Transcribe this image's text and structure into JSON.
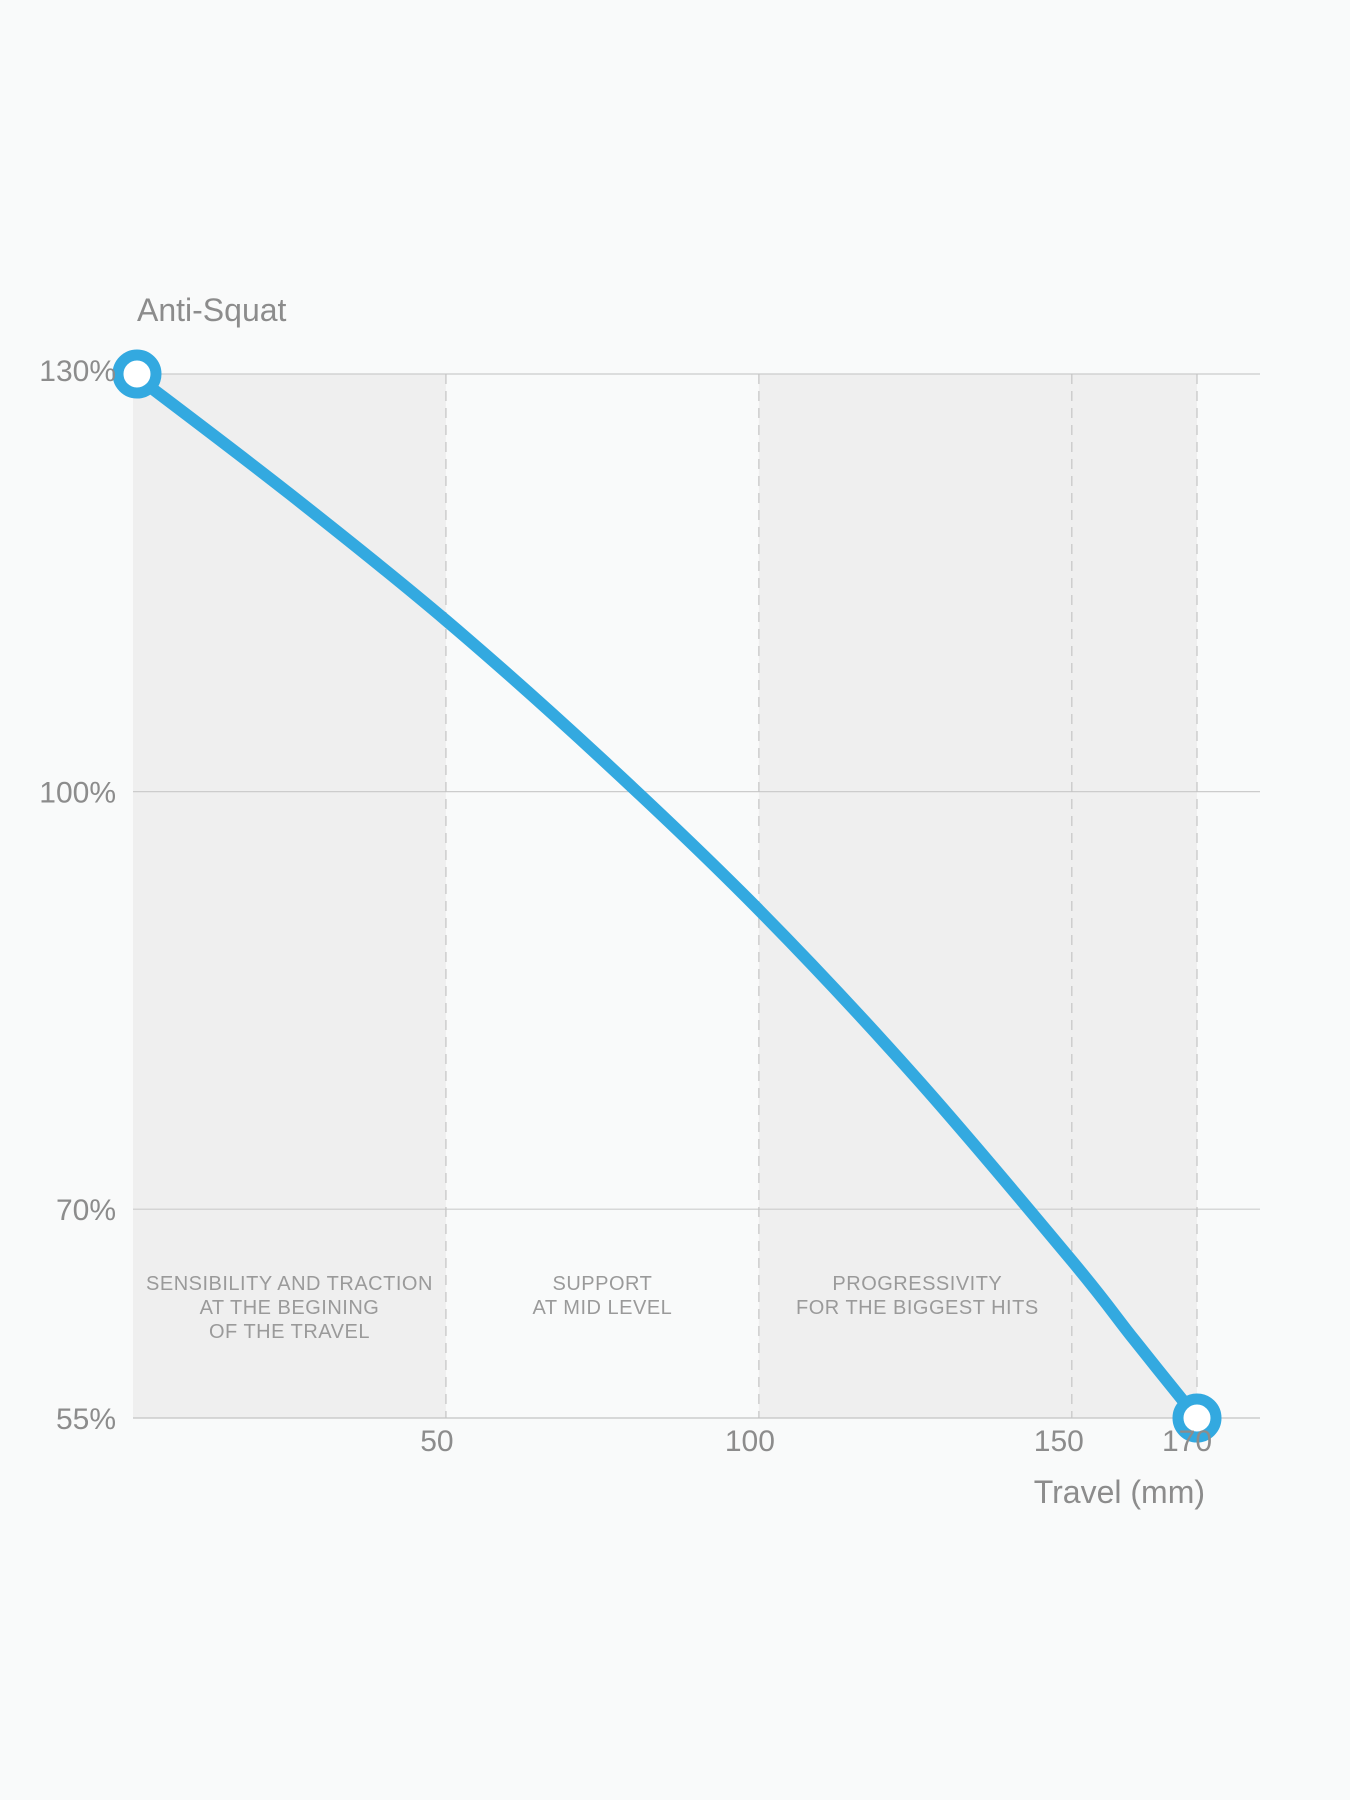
{
  "chart_data": {
    "type": "line",
    "ylabel": "Anti-Squat",
    "xlabel": "Travel (mm)",
    "xlim": [
      0,
      170
    ],
    "ylim": [
      55,
      130
    ],
    "x_ticks": [
      50,
      100,
      150,
      170
    ],
    "y_ticks": [
      130,
      100,
      70,
      55
    ],
    "y_tick_labels": [
      "130%",
      "100%",
      "70%",
      "55%"
    ],
    "zone_boundaries": [
      50,
      100,
      150,
      170
    ],
    "zones": [
      {
        "from": 0,
        "to": 50,
        "shaded": true,
        "lines": [
          "SENSIBILITY AND TRACTION",
          "AT THE BEGINING",
          "OF THE TRAVEL"
        ]
      },
      {
        "from": 50,
        "to": 100,
        "shaded": false,
        "lines": [
          "SUPPORT",
          "AT MID LEVEL"
        ]
      },
      {
        "from": 100,
        "to": 170,
        "shaded": true,
        "lines": [
          "PROGRESSIVITY",
          "FOR THE BIGGEST HITS"
        ]
      }
    ],
    "series": [
      {
        "color": "#33a9e0",
        "x": [
          0,
          25,
          50,
          75,
          100,
          125,
          150,
          160,
          170
        ],
        "y": [
          130,
          121.4,
          112.3,
          102.3,
          91.5,
          79.5,
          66.3,
          60.6,
          55
        ]
      }
    ],
    "endpoints": [
      {
        "x": 0,
        "y": 130
      },
      {
        "x": 170,
        "y": 55
      }
    ],
    "colors": {
      "background": "#f9fafa",
      "shade": "#efefef",
      "grid": "#cccccc",
      "text": "#8c8c8c",
      "line": "#33a9e0"
    }
  }
}
